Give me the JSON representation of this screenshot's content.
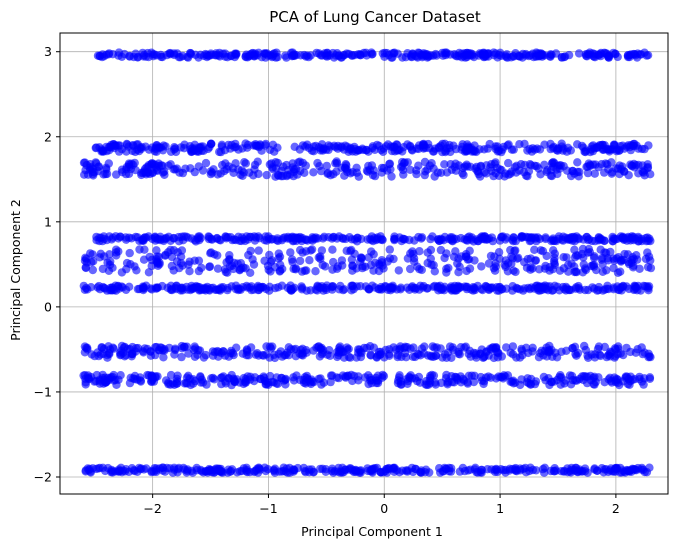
{
  "chart_data": {
    "type": "scatter",
    "title": "PCA of Lung Cancer Dataset",
    "xlabel": "Principal Component 1",
    "ylabel": "Principal Component 2",
    "xlim": [
      -2.8,
      2.45
    ],
    "ylim": [
      -2.2,
      3.22
    ],
    "xticks": [
      -2,
      -1,
      0,
      1,
      2
    ],
    "yticks": [
      -2,
      -1,
      0,
      1,
      2,
      3
    ],
    "xtick_labels": [
      "−2",
      "−1",
      "0",
      "1",
      "2"
    ],
    "ytick_labels": [
      "−2",
      "−1",
      "0",
      "1",
      "2",
      "3"
    ],
    "grid": true,
    "marker_color": "#0000ff",
    "marker_alpha": 0.6,
    "bands": [
      {
        "x_start": -2.5,
        "x_end": 2.3,
        "y_center": 2.96,
        "y_spread": 0.03,
        "gap_at": null
      },
      {
        "x_start": -2.5,
        "x_end": 2.3,
        "y_center": 1.87,
        "y_spread": 0.05,
        "gap_at": null
      },
      {
        "x_start": -2.6,
        "x_end": 2.3,
        "y_center": 1.62,
        "y_spread": 0.09,
        "gap_at": 0.1
      },
      {
        "x_start": -2.5,
        "x_end": 2.3,
        "y_center": 0.8,
        "y_spread": 0.03,
        "gap_at": 0.05
      },
      {
        "x_start": -2.6,
        "x_end": 2.32,
        "y_center": 0.54,
        "y_spread": 0.14,
        "gap_at": null
      },
      {
        "x_start": -2.6,
        "x_end": 2.3,
        "y_center": 0.22,
        "y_spread": 0.03,
        "gap_at": null
      },
      {
        "x_start": -2.6,
        "x_end": 2.3,
        "y_center": -0.53,
        "y_spread": 0.07,
        "gap_at": null
      },
      {
        "x_start": -2.6,
        "x_end": 2.3,
        "y_center": -0.86,
        "y_spread": 0.06,
        "gap_at": 0.05
      },
      {
        "x_start": -2.6,
        "x_end": 2.3,
        "y_center": -1.92,
        "y_spread": 0.03,
        "gap_at": null
      }
    ]
  }
}
